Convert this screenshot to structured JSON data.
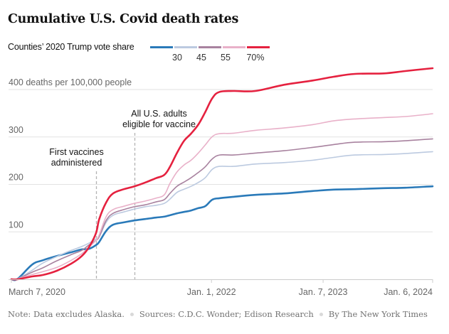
{
  "chart_data": {
    "type": "line",
    "title": "Cumulative U.S. Covid death rates",
    "ylabel": "deaths per 100,000 people",
    "xlabel": "",
    "ylim": [
      0,
      400
    ],
    "xlim": [
      "2020-03-07",
      "2024-01-06"
    ],
    "grid": true,
    "y_ticks": [
      {
        "value": 100,
        "label": "100"
      },
      {
        "value": 200,
        "label": "200"
      },
      {
        "value": 300,
        "label": "300"
      },
      {
        "value": 400,
        "label": "400 deaths per 100,000 people"
      }
    ],
    "x_ticks": [
      {
        "date": "2020-03-07",
        "label": "March 7, 2020",
        "anchor": "start"
      },
      {
        "date": "2022-01-01",
        "label": "Jan. 1, 2022",
        "anchor": "middle"
      },
      {
        "date": "2023-01-07",
        "label": "Jan. 7, 2023",
        "anchor": "middle"
      },
      {
        "date": "2024-01-06",
        "label": "Jan. 6, 2024",
        "anchor": "end"
      }
    ],
    "legend": {
      "title": "Counties’ 2020 Trump vote share",
      "placement": "top-left",
      "breaks": [
        "30",
        "45",
        "55",
        "70%"
      ]
    },
    "annotations": [
      {
        "date": "2020-12-14",
        "lines": [
          "First vaccines",
          "administered"
        ],
        "align": "middle"
      },
      {
        "date": "2021-04-19",
        "lines": [
          "All U.S. adults",
          "eligible for vaccine"
        ],
        "align": "end"
      }
    ],
    "x": [
      "2020-03-07",
      "2020-03-28",
      "2020-05-15",
      "2020-06-19",
      "2020-08-05",
      "2020-09-22",
      "2020-10-27",
      "2020-11-19",
      "2020-12-13",
      "2020-12-24",
      "2021-01-16",
      "2021-02-08",
      "2021-03-16",
      "2021-04-20",
      "2021-05-26",
      "2021-06-30",
      "2021-07-28",
      "2021-08-16",
      "2021-09-08",
      "2021-10-02",
      "2021-10-25",
      "2021-11-18",
      "2021-12-11",
      "2022-01-04",
      "2022-01-28",
      "2022-03-16",
      "2022-05-27",
      "2022-08-30",
      "2022-12-03",
      "2023-02-11",
      "2023-04-23",
      "2023-07-27",
      "2023-10-07",
      "2024-01-06"
    ],
    "series": [
      {
        "name": "Under 30%",
        "color": "#2a7ab9",
        "width": 2.6,
        "values": [
          0,
          1,
          31,
          40,
          49,
          57,
          63,
          64,
          72,
          79,
          102,
          115,
          120,
          124,
          127,
          130,
          132,
          135,
          139,
          142,
          145,
          150,
          154,
          168,
          171,
          174,
          178,
          181,
          186,
          189,
          190,
          192,
          193,
          196
        ]
      },
      {
        "name": "30–45%",
        "color": "#bccae0",
        "width": 1.6,
        "values": [
          0,
          1,
          19,
          34,
          48,
          61,
          69,
          76,
          85,
          90,
          120,
          135,
          142,
          148,
          153,
          156,
          160,
          169,
          183,
          190,
          196,
          204,
          214,
          232,
          238,
          238,
          243,
          246,
          251,
          257,
          262,
          263,
          265,
          269
        ]
      },
      {
        "name": "45–55%",
        "color": "#a8829f",
        "width": 1.6,
        "values": [
          0,
          1,
          15,
          24,
          39,
          52,
          61,
          72,
          82,
          90,
          124,
          139,
          147,
          153,
          157,
          163,
          168,
          181,
          196,
          205,
          214,
          225,
          237,
          254,
          262,
          262,
          266,
          271,
          278,
          284,
          289,
          290,
          292,
          296
        ]
      },
      {
        "name": "55–70%",
        "color": "#e9b1c9",
        "width": 1.6,
        "values": [
          0,
          1,
          10,
          16,
          25,
          40,
          54,
          67,
          82,
          94,
          132,
          147,
          154,
          160,
          165,
          171,
          178,
          202,
          226,
          241,
          251,
          266,
          283,
          301,
          307,
          308,
          314,
          319,
          326,
          334,
          338,
          341,
          343,
          349
        ]
      },
      {
        "name": "Over 70%",
        "color": "#e5213f",
        "width": 2.6,
        "values": [
          0,
          0,
          6,
          9,
          18,
          33,
          49,
          67,
          97,
          127,
          162,
          181,
          190,
          196,
          204,
          213,
          220,
          237,
          266,
          292,
          307,
          326,
          352,
          382,
          395,
          397,
          397,
          410,
          419,
          427,
          433,
          434,
          439,
          445
        ]
      }
    ]
  },
  "footer": {
    "note": "Note: Data excludes Alaska.",
    "sources": "Sources: C.D.C. Wonder; Edison Research",
    "credit": "By The New York Times"
  }
}
